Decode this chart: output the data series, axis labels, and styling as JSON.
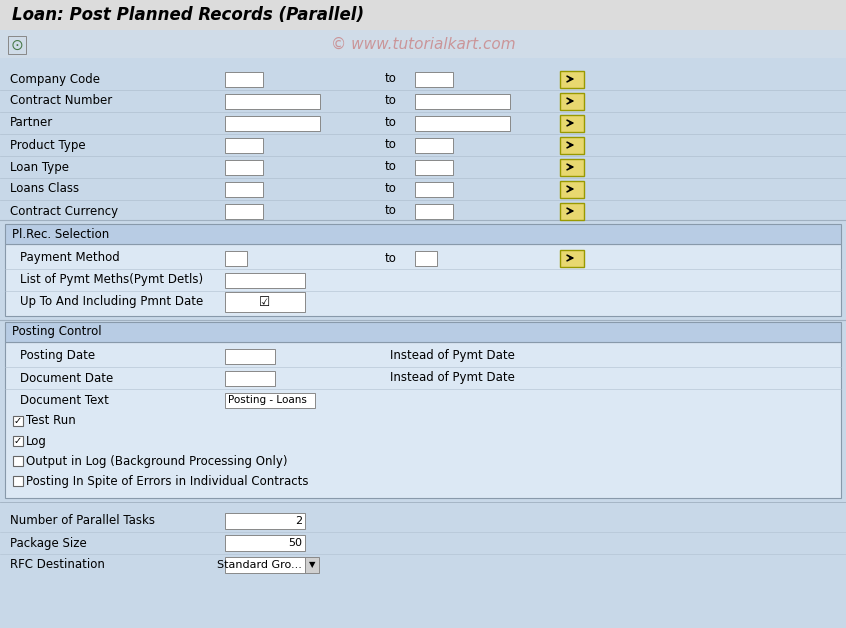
{
  "title": "Loan: Post Planned Records (Parallel)",
  "watermark": "© www.tutorialkart.com",
  "bg_color": "#c8d8e8",
  "header_bg": "#d0dce8",
  "title_bg": "#e8e8e8",
  "toolbar_bg": "#d8e4f0",
  "section_header_bg": "#b8cce4",
  "field_bg": "#ffffff",
  "button_bg": "#e8d870",
  "section_inner_bg": "#dce8f4",
  "fields_section1": [
    {
      "label": "Company Code",
      "has_from": true,
      "from_wide": false,
      "has_to": true,
      "to_wide": false
    },
    {
      "label": "Contract Number",
      "has_from": true,
      "from_wide": true,
      "has_to": true,
      "to_wide": true
    },
    {
      "label": "Partner",
      "has_from": true,
      "from_wide": true,
      "has_to": true,
      "to_wide": true
    },
    {
      "label": "Product Type",
      "has_from": true,
      "from_wide": false,
      "has_to": true,
      "to_wide": false
    },
    {
      "label": "Loan Type",
      "has_from": true,
      "from_wide": false,
      "has_to": true,
      "to_wide": false
    },
    {
      "label": "Loans Class",
      "has_from": true,
      "from_wide": false,
      "has_to": true,
      "to_wide": false
    },
    {
      "label": "Contract Currency",
      "has_from": true,
      "from_wide": false,
      "has_to": true,
      "to_wide": false
    }
  ],
  "section2_title": "Pl.Rec. Selection",
  "fields_section2": [
    {
      "label": "Payment Method",
      "has_from": true,
      "from_wide": false,
      "has_to": true,
      "to_wide": false,
      "has_button": true
    },
    {
      "label": "List of Pymt Meths(Pymt Detls)",
      "has_from": true,
      "from_wide": true,
      "has_to": false,
      "to_wide": false,
      "has_button": false
    },
    {
      "label": "Up To And Including Pmnt Date",
      "has_from": true,
      "from_wide": true,
      "has_to": false,
      "to_wide": false,
      "has_button": false,
      "checked": true
    }
  ],
  "section3_title": "Posting Control",
  "fields_section3": [
    {
      "label": "Posting Date",
      "has_from": true,
      "from_wide": false,
      "suffix": "Instead of Pymt Date"
    },
    {
      "label": "Document Date",
      "has_from": true,
      "from_wide": false,
      "suffix": "Instead of Pymt Date"
    },
    {
      "label": "Document Text",
      "has_from": true,
      "from_wide": true,
      "value": "Posting - Loans"
    }
  ],
  "checkboxes_section3": [
    {
      "label": "Test Run",
      "checked": true
    },
    {
      "label": "Log",
      "checked": true
    },
    {
      "label": "Output in Log (Background Processing Only)",
      "checked": false
    },
    {
      "label": "Posting In Spite of Errors in Individual Contracts",
      "checked": false
    }
  ],
  "bottom_fields": [
    {
      "label": "Number of Parallel Tasks",
      "value": "2",
      "has_dropdown": false
    },
    {
      "label": "Package Size",
      "value": "50",
      "has_dropdown": false
    },
    {
      "label": "RFC Destination",
      "value": "Standard Gro...",
      "has_dropdown": true
    }
  ]
}
